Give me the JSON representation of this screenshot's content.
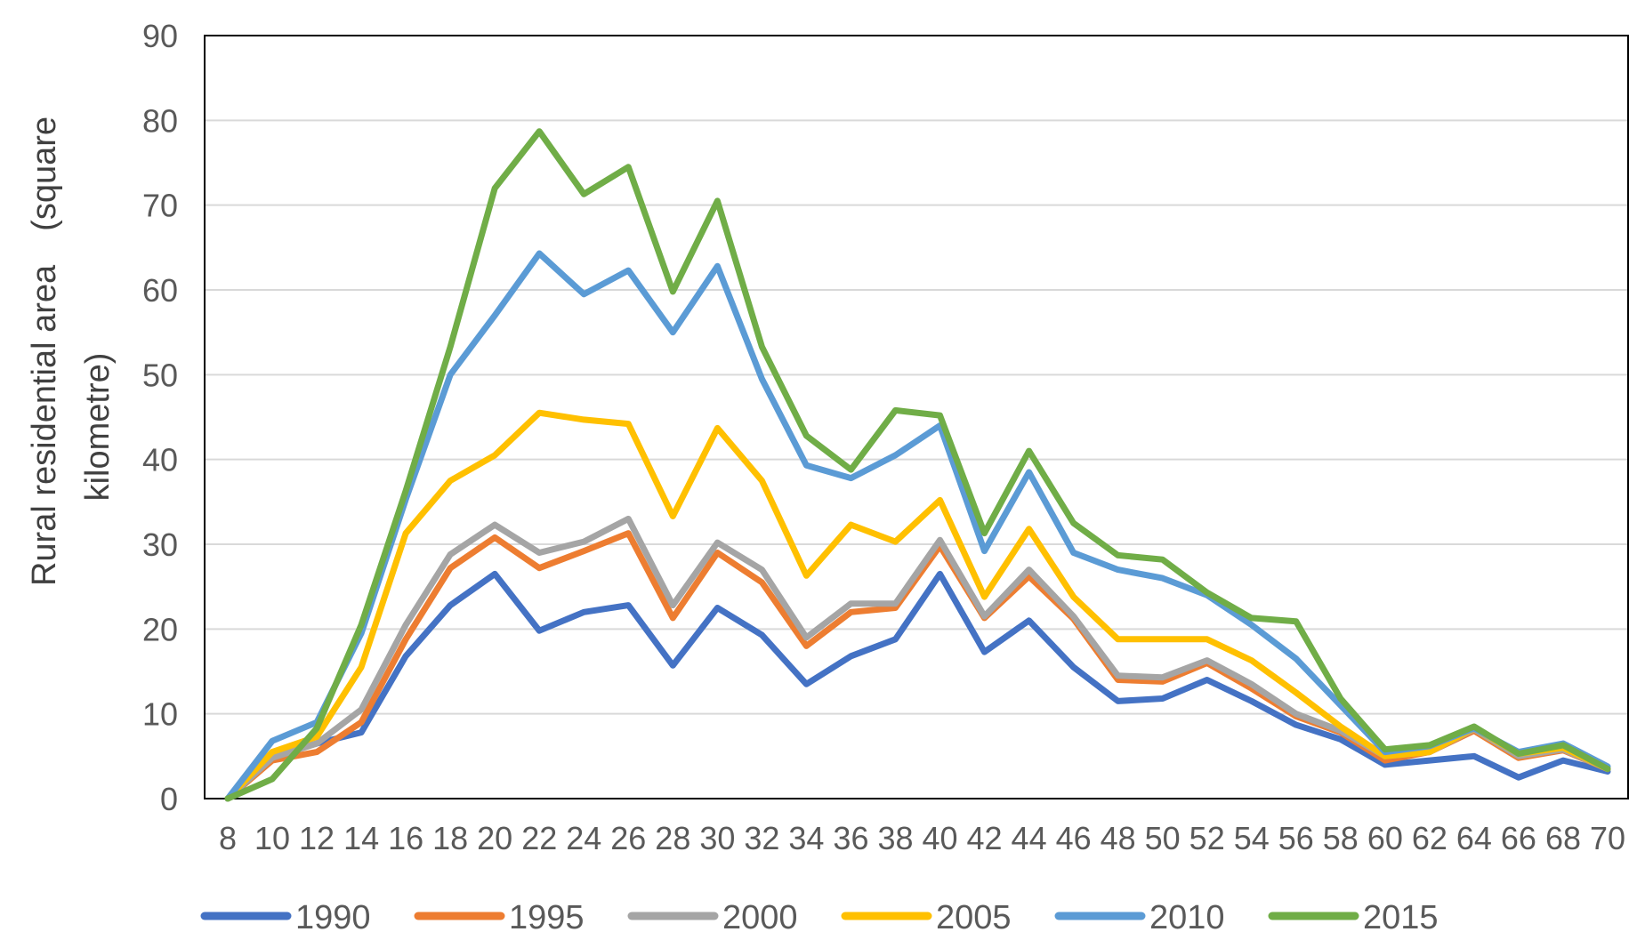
{
  "chart_data": {
    "type": "line",
    "ylabel_line1": "Rural residential area　(square",
    "ylabel_line2": "kilometre)",
    "ylim": [
      0,
      90
    ],
    "y_ticks": [
      0,
      10,
      20,
      30,
      40,
      50,
      60,
      70,
      80,
      90
    ],
    "grid": true,
    "legend_position": "bottom",
    "x": [
      8,
      10,
      12,
      14,
      16,
      18,
      20,
      22,
      24,
      26,
      28,
      30,
      32,
      34,
      36,
      38,
      40,
      42,
      44,
      46,
      48,
      50,
      52,
      54,
      56,
      58,
      60,
      62,
      64,
      66,
      68,
      70
    ],
    "series": [
      {
        "name": "1990",
        "color": "#4472C4",
        "values": [
          0,
          5,
          6.5,
          7.8,
          16.8,
          22.8,
          26.5,
          19.8,
          22,
          22.8,
          15.7,
          22.5,
          19.3,
          13.5,
          16.8,
          18.8,
          26.5,
          17.3,
          21,
          15.5,
          11.5,
          11.8,
          14,
          11.5,
          8.7,
          7,
          4,
          4.5,
          5,
          2.5,
          4.5,
          3.2
        ]
      },
      {
        "name": "1995",
        "color": "#ED7D31",
        "values": [
          0,
          4.5,
          5.5,
          9,
          18.8,
          27.2,
          30.8,
          27.2,
          29.2,
          31.3,
          21.3,
          29,
          25.5,
          18,
          22,
          22.5,
          29.8,
          21.3,
          26.2,
          21.2,
          14,
          13.8,
          16,
          13,
          9.7,
          7.8,
          4.5,
          5.5,
          8,
          4.8,
          5.7,
          3.5
        ]
      },
      {
        "name": "2000",
        "color": "#A5A5A5",
        "values": [
          0,
          4.8,
          6.5,
          10.5,
          20.5,
          28.8,
          32.3,
          29,
          30.3,
          33,
          22.8,
          30.2,
          27,
          19,
          23,
          23,
          30.5,
          21.5,
          27,
          21.5,
          14.5,
          14.3,
          16.3,
          13.5,
          10,
          8,
          5,
          5.5,
          8.2,
          5,
          5.8,
          3.5
        ]
      },
      {
        "name": "2005",
        "color": "#FFC000",
        "values": [
          0,
          5.5,
          7.3,
          15.5,
          31.3,
          37.5,
          40.5,
          45.5,
          44.7,
          44.2,
          33.3,
          43.7,
          37.5,
          26.3,
          32.3,
          30.3,
          35.2,
          23.8,
          31.8,
          23.8,
          18.8,
          18.8,
          18.8,
          16.3,
          12.5,
          8.5,
          5,
          5.5,
          8.3,
          5.3,
          6,
          3.5
        ]
      },
      {
        "name": "2010",
        "color": "#5B9BD5",
        "values": [
          0,
          6.8,
          9,
          19.5,
          35.3,
          50,
          57,
          64.3,
          59.5,
          62.3,
          55,
          62.8,
          49.5,
          39.3,
          37.8,
          40.5,
          44,
          29.2,
          38.5,
          29,
          27,
          26,
          24,
          20.5,
          16.5,
          11,
          5.5,
          6.2,
          8.3,
          5.5,
          6.5,
          3.8
        ]
      },
      {
        "name": "2015",
        "color": "#70AD47",
        "values": [
          0,
          2.3,
          8.3,
          20.5,
          36.3,
          53.3,
          72,
          78.7,
          71.3,
          74.5,
          59.8,
          70.5,
          53.3,
          42.8,
          38.8,
          45.8,
          45.2,
          31.3,
          41,
          32.5,
          28.7,
          28.2,
          24.3,
          21.3,
          20.9,
          11.8,
          5.8,
          6.3,
          8.5,
          5.3,
          6.3,
          3.5
        ]
      }
    ]
  }
}
